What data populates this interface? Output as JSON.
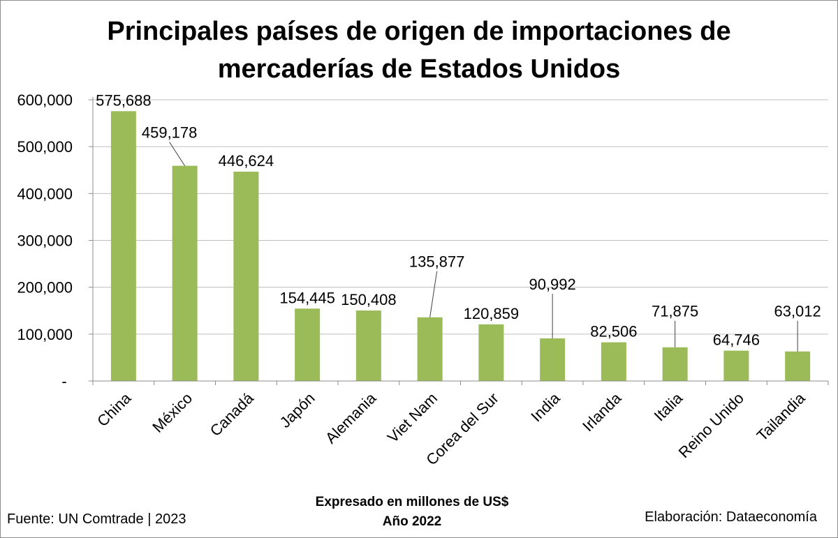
{
  "title_lines": [
    "Principales países de origen de importaciones de",
    "mercaderías de Estados Unidos"
  ],
  "footer": {
    "source": "Fuente: UN Comtrade | 2023",
    "credit": "Elaboración: Dataeconomía",
    "note_line1": "Expresado en millones de US$",
    "note_line2": "Año 2022"
  },
  "colors": {
    "bar": "#9bbb59",
    "grid": "#bfbfbf",
    "axis": "#8c8c8c",
    "text": "#000000"
  },
  "chart_data": {
    "type": "bar",
    "title": "Principales países de origen de importaciones de mercaderías de Estados Unidos",
    "categories": [
      "China",
      "México",
      "Canadá",
      "Japón",
      "Alemania",
      "Viet Nam",
      "Corea del Sur",
      "India",
      "Irlanda",
      "Italia",
      "Reino Unido",
      "Tailandia"
    ],
    "values": [
      575688,
      459178,
      446624,
      154445,
      150408,
      135877,
      120859,
      90992,
      82506,
      71875,
      64746,
      63012
    ],
    "value_labels": [
      "575,688",
      "459,178",
      "446,624",
      "154,445",
      "150,408",
      "135,877",
      "120,859",
      "90,992",
      "82,506",
      "71,875",
      "64,746",
      "63,012"
    ],
    "ylim": [
      0,
      600000
    ],
    "yticks": [
      0,
      100000,
      200000,
      300000,
      400000,
      500000,
      600000
    ],
    "ytick_labels": [
      "-",
      "100,000",
      "200,000",
      "300,000",
      "400,000",
      "500,000",
      "600,000"
    ],
    "xlabel": "Expresado en millones de US$ Año 2022",
    "ylabel": "",
    "grid": true,
    "legend": "none"
  }
}
